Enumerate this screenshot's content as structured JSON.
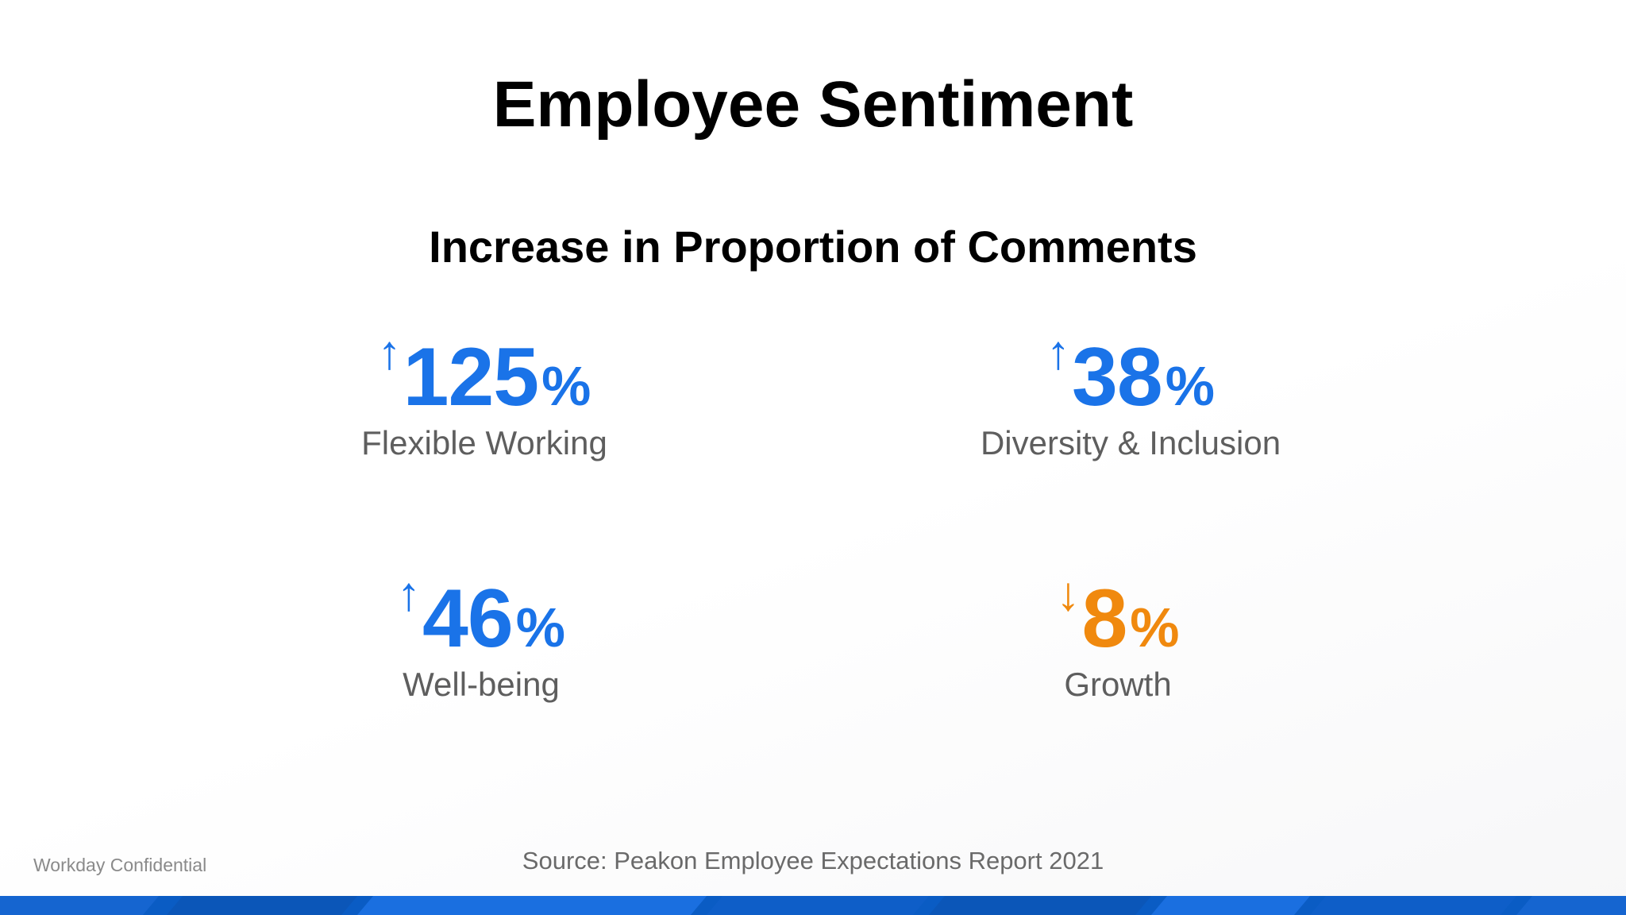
{
  "slide": {
    "title": "Employee Sentiment",
    "subtitle": "Increase in Proportion of Comments",
    "stats": [
      {
        "arrow": "↑",
        "value": "125",
        "unit": "%",
        "label": "Flexible Working",
        "color": "#1a73e8"
      },
      {
        "arrow": "↑",
        "value": "38",
        "unit": "%",
        "label": "Diversity & Inclusion",
        "color": "#1a73e8"
      },
      {
        "arrow": "↑",
        "value": "46",
        "unit": "%",
        "label": "Well-being",
        "color": "#1a73e8"
      },
      {
        "arrow": "↓",
        "value": "8",
        "unit": "%",
        "label": "Growth",
        "color": "#f0890e"
      }
    ],
    "confidential": "Workday Confidential",
    "source": "Source: Peakon Employee Expectations Report 2021"
  },
  "colors": {
    "accent_blue": "#1a73e8",
    "accent_orange": "#f0890e",
    "footer_blue": "#0a5cc4"
  }
}
